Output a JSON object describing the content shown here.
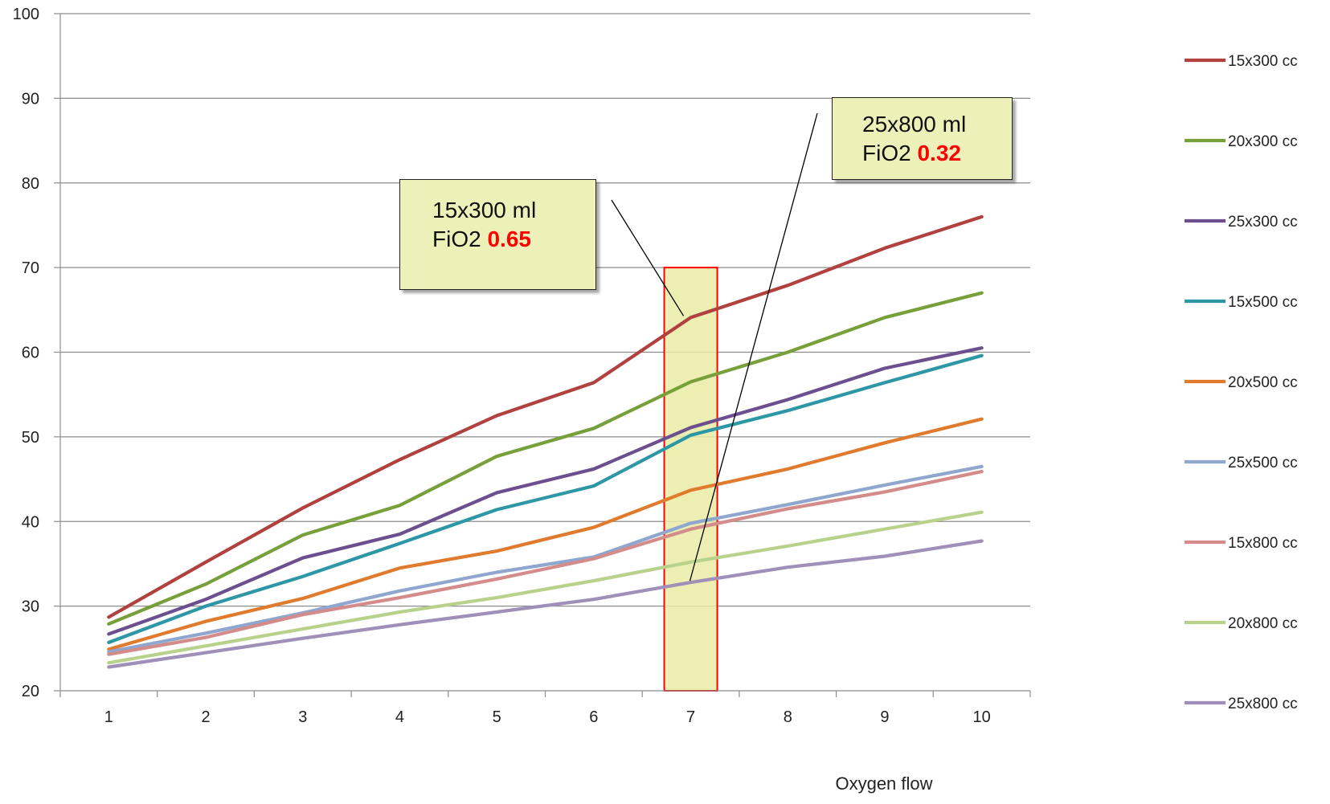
{
  "chart_data": {
    "type": "line",
    "title": "",
    "xlabel": "Oxygen flow",
    "ylabel": "",
    "x": [
      1,
      2,
      3,
      4,
      5,
      6,
      7,
      8,
      9,
      10
    ],
    "ylim": [
      20,
      100
    ],
    "yticks": [
      20,
      30,
      40,
      50,
      60,
      70,
      80,
      90,
      100
    ],
    "grid": true,
    "legend_position": "right",
    "series": [
      {
        "name": "15x300 cc",
        "color": "#b0413e",
        "values": [
          28.7,
          35.2,
          41.6,
          47.3,
          52.5,
          56.4,
          64.1,
          67.9,
          72.3,
          76.0
        ]
      },
      {
        "name": "20x300 cc",
        "color": "#77a03b",
        "values": [
          27.9,
          32.6,
          38.4,
          41.9,
          47.7,
          51.0,
          56.5,
          60.0,
          64.1,
          67.0
        ]
      },
      {
        "name": "25x300 cc",
        "color": "#6b4f8f",
        "values": [
          26.7,
          30.8,
          35.7,
          38.5,
          43.4,
          46.2,
          51.1,
          54.4,
          58.1,
          60.5
        ]
      },
      {
        "name": "15x500 cc",
        "color": "#2e97a6",
        "values": [
          25.7,
          30.0,
          33.5,
          37.4,
          41.4,
          44.2,
          50.2,
          53.1,
          56.4,
          59.6
        ]
      },
      {
        "name": "20x500 cc",
        "color": "#e07b2e",
        "values": [
          24.9,
          28.2,
          30.9,
          34.5,
          36.5,
          39.3,
          43.7,
          46.2,
          49.3,
          52.1
        ]
      },
      {
        "name": "25x500 cc",
        "color": "#8fa6cf",
        "values": [
          24.6,
          26.8,
          29.2,
          31.8,
          34.0,
          35.8,
          39.8,
          42.0,
          44.3,
          46.5
        ]
      },
      {
        "name": "15x800 cc",
        "color": "#d48c8a",
        "values": [
          24.3,
          26.3,
          29.0,
          31.0,
          33.2,
          35.6,
          39.1,
          41.5,
          43.5,
          45.9
        ]
      },
      {
        "name": "20x800 cc",
        "color": "#b8d28c",
        "values": [
          23.3,
          25.3,
          27.3,
          29.3,
          31.0,
          33.0,
          35.2,
          37.1,
          39.1,
          41.1
        ]
      },
      {
        "name": "25x800 cc",
        "color": "#9f8fb9",
        "values": [
          22.8,
          24.5,
          26.2,
          27.8,
          29.3,
          30.8,
          32.8,
          34.6,
          35.9,
          37.7
        ]
      }
    ],
    "highlight": {
      "x": 7,
      "y_from": 20,
      "y_to": 70,
      "fill": "#e9eba5",
      "border": "#ff0000"
    },
    "annotations": [
      {
        "line1": "15x300 ml",
        "label": "FiO2",
        "value": "0.65",
        "target_x": 7,
        "target_y": 64.1
      },
      {
        "line1": "25x800 ml",
        "label": "FiO2",
        "value": "0.32",
        "target_x": 7,
        "target_y": 32.8
      }
    ]
  }
}
